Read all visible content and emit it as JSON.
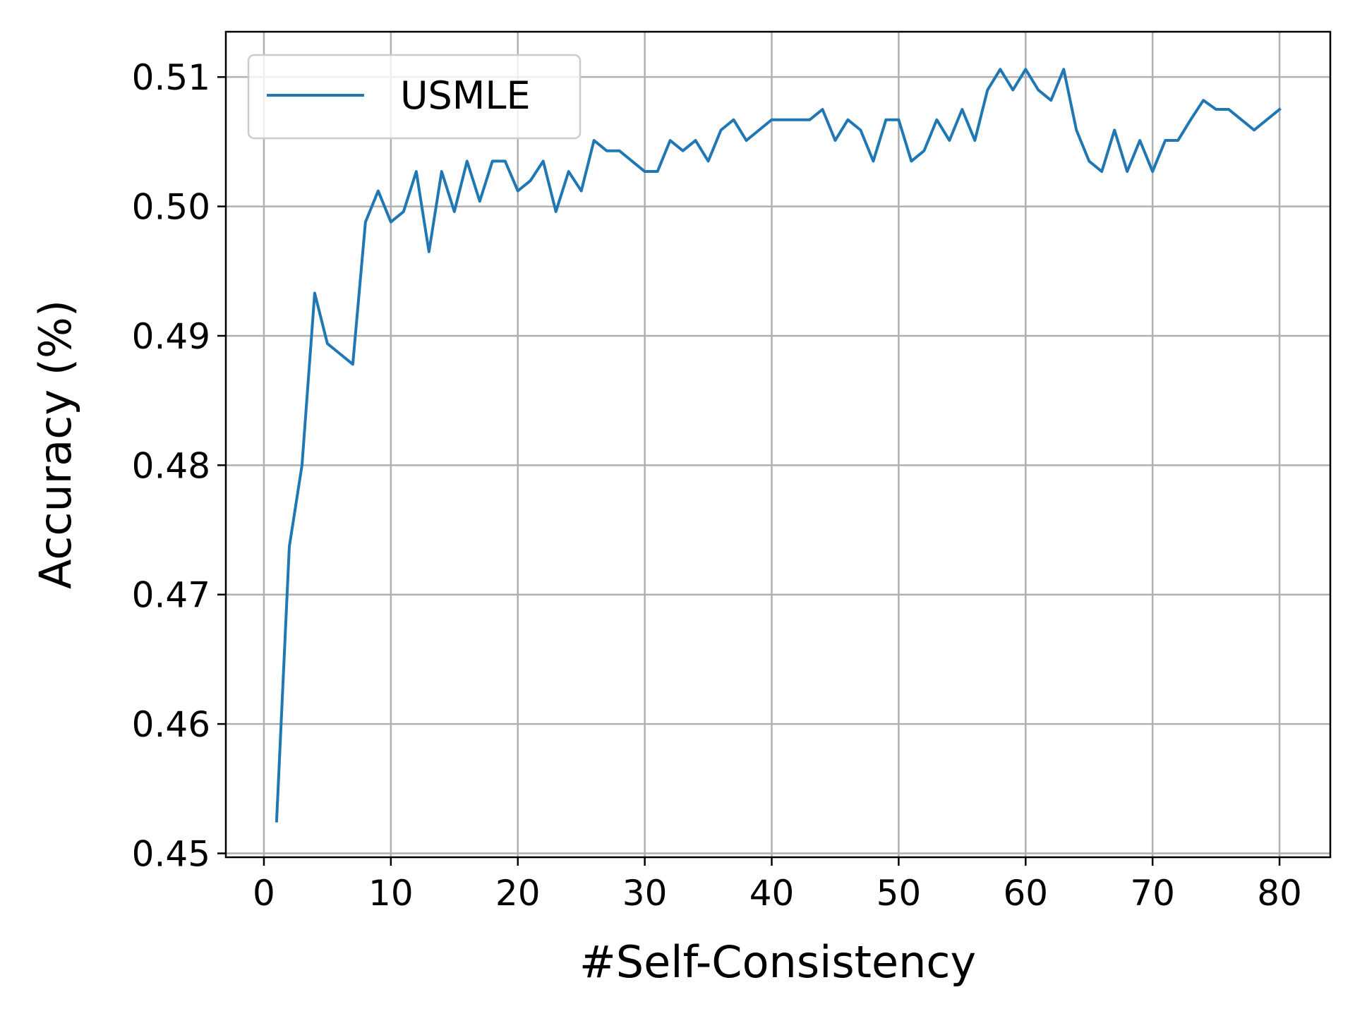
{
  "chart_data": {
    "type": "line",
    "title": "",
    "xlabel": "#Self-Consistency",
    "ylabel": "Accuracy (%)",
    "xlim": [
      -3,
      84
    ],
    "ylim": [
      0.4497,
      0.5135
    ],
    "xticks": [
      0,
      10,
      20,
      30,
      40,
      50,
      60,
      70,
      80
    ],
    "yticks": [
      0.45,
      0.46,
      0.47,
      0.48,
      0.49,
      0.5,
      0.51
    ],
    "xtick_labels": [
      "0",
      "10",
      "20",
      "30",
      "40",
      "50",
      "60",
      "70",
      "80"
    ],
    "ytick_labels": [
      "0.45",
      "0.46",
      "0.47",
      "0.48",
      "0.49",
      "0.50",
      "0.51"
    ],
    "grid": true,
    "legend": {
      "placement": "top-left",
      "entries": [
        "USMLE"
      ]
    },
    "series": [
      {
        "name": "USMLE",
        "color": "#1f77b4",
        "x": [
          1,
          2,
          3,
          4,
          5,
          6,
          7,
          8,
          9,
          10,
          11,
          12,
          13,
          14,
          15,
          16,
          17,
          18,
          19,
          20,
          21,
          22,
          23,
          24,
          25,
          26,
          27,
          28,
          29,
          30,
          31,
          32,
          33,
          34,
          35,
          36,
          37,
          38,
          39,
          40,
          41,
          42,
          43,
          44,
          45,
          46,
          47,
          48,
          49,
          50,
          51,
          52,
          53,
          54,
          55,
          56,
          57,
          58,
          59,
          60,
          61,
          62,
          63,
          64,
          65,
          66,
          67,
          68,
          69,
          70,
          71,
          72,
          73,
          74,
          75,
          76,
          77,
          78,
          79,
          80
        ],
        "values": [
          0.4525,
          0.4737,
          0.48,
          0.4933,
          0.4894,
          0.4886,
          0.4878,
          0.4988,
          0.5012,
          0.4988,
          0.4996,
          0.5027,
          0.4965,
          0.5027,
          0.4996,
          0.5035,
          0.5004,
          0.5035,
          0.5035,
          0.5012,
          0.502,
          0.5035,
          0.4996,
          0.5027,
          0.5012,
          0.5051,
          0.5043,
          0.5043,
          0.5035,
          0.5027,
          0.5027,
          0.5051,
          0.5043,
          0.5051,
          0.5035,
          0.5059,
          0.5067,
          0.5051,
          0.5059,
          0.5067,
          0.5067,
          0.5067,
          0.5067,
          0.5075,
          0.5051,
          0.5067,
          0.5059,
          0.5035,
          0.5067,
          0.5067,
          0.5035,
          0.5043,
          0.5067,
          0.5051,
          0.5075,
          0.5051,
          0.509,
          0.5106,
          0.509,
          0.5106,
          0.509,
          0.5082,
          0.5106,
          0.5059,
          0.5035,
          0.5027,
          0.5059,
          0.5027,
          0.5051,
          0.5027,
          0.5051,
          0.5051,
          0.5067,
          0.5082,
          0.5075,
          0.5075,
          0.5067,
          0.5059,
          0.5067,
          0.5075
        ]
      }
    ]
  }
}
